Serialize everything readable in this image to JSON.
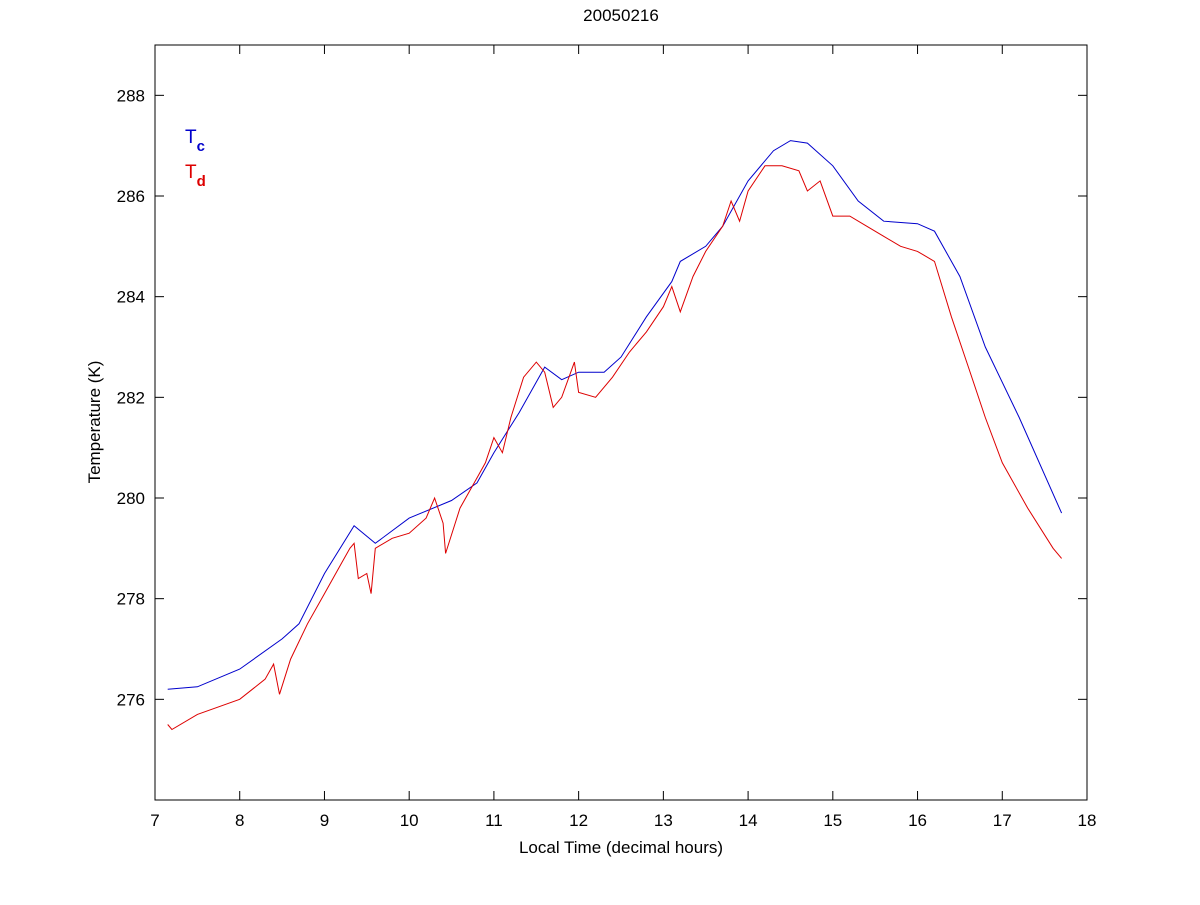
{
  "chart_data": {
    "type": "line",
    "title": "20050216",
    "xlabel": "Local Time (decimal hours)",
    "ylabel": "Temperature (K)",
    "xlim": [
      7,
      18
    ],
    "ylim": [
      274,
      289
    ],
    "xticks": [
      7,
      8,
      9,
      10,
      11,
      12,
      13,
      14,
      15,
      16,
      17,
      18
    ],
    "yticks": [
      276,
      278,
      280,
      282,
      284,
      286,
      288
    ],
    "grid": false,
    "legend": {
      "placement": "top-left",
      "entries": [
        {
          "base": "T",
          "sub": "c",
          "color": "#0000cc"
        },
        {
          "base": "T",
          "sub": "d",
          "color": "#dd0000"
        }
      ]
    },
    "series": [
      {
        "name": "Tc",
        "color": "#0000cc",
        "x": [
          7.15,
          7.5,
          8.0,
          8.5,
          8.7,
          9.0,
          9.35,
          9.6,
          10.0,
          10.5,
          10.8,
          11.0,
          11.3,
          11.6,
          11.8,
          12.0,
          12.3,
          12.5,
          12.8,
          13.1,
          13.2,
          13.5,
          13.7,
          14.0,
          14.3,
          14.5,
          14.7,
          15.0,
          15.3,
          15.6,
          16.0,
          16.2,
          16.5,
          16.8,
          17.2,
          17.7
        ],
        "y": [
          276.2,
          276.25,
          276.6,
          277.2,
          277.5,
          278.5,
          279.45,
          279.1,
          279.6,
          279.95,
          280.3,
          280.9,
          281.7,
          282.6,
          282.35,
          282.5,
          282.5,
          282.8,
          283.6,
          284.3,
          284.7,
          285.0,
          285.4,
          286.3,
          286.9,
          287.1,
          287.05,
          286.6,
          285.9,
          285.5,
          285.45,
          285.3,
          284.4,
          283.0,
          281.6,
          279.7
        ]
      },
      {
        "name": "Td",
        "color": "#dd0000",
        "x": [
          7.15,
          7.2,
          7.5,
          8.0,
          8.3,
          8.4,
          8.47,
          8.6,
          8.8,
          9.0,
          9.2,
          9.3,
          9.35,
          9.4,
          9.5,
          9.55,
          9.6,
          9.8,
          10.0,
          10.2,
          10.3,
          10.4,
          10.43,
          10.6,
          10.8,
          10.9,
          11.0,
          11.1,
          11.2,
          11.35,
          11.5,
          11.6,
          11.7,
          11.8,
          11.95,
          12.0,
          12.2,
          12.4,
          12.6,
          12.8,
          13.0,
          13.1,
          13.2,
          13.35,
          13.5,
          13.7,
          13.8,
          13.9,
          14.0,
          14.2,
          14.4,
          14.6,
          14.7,
          14.85,
          15.0,
          15.2,
          15.4,
          15.6,
          15.8,
          16.0,
          16.2,
          16.4,
          16.6,
          16.8,
          17.0,
          17.3,
          17.6,
          17.7
        ],
        "y": [
          275.5,
          275.4,
          275.7,
          276.0,
          276.4,
          276.7,
          276.1,
          276.8,
          277.5,
          278.1,
          278.7,
          279.0,
          279.1,
          278.4,
          278.5,
          278.1,
          279.0,
          279.2,
          279.3,
          279.6,
          280.0,
          279.5,
          278.9,
          279.8,
          280.4,
          280.7,
          281.2,
          280.9,
          281.6,
          282.4,
          282.7,
          282.5,
          281.8,
          282.0,
          282.7,
          282.1,
          282.0,
          282.4,
          282.9,
          283.3,
          283.8,
          284.2,
          283.7,
          284.4,
          284.9,
          285.4,
          285.9,
          285.5,
          286.1,
          286.6,
          286.6,
          286.5,
          286.1,
          286.3,
          285.6,
          285.6,
          285.4,
          285.2,
          285.0,
          284.9,
          284.7,
          283.6,
          282.6,
          281.6,
          280.7,
          279.8,
          279.0,
          278.8
        ]
      }
    ]
  }
}
